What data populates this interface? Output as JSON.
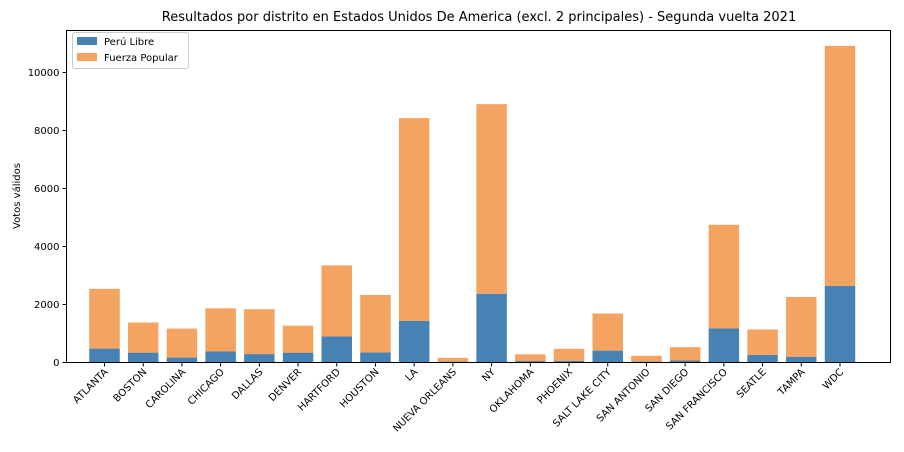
{
  "chart_data": {
    "type": "bar",
    "stacked": true,
    "title": "Resultados por distrito en Estados Unidos De America (excl. 2 principales) - Segunda vuelta 2021",
    "xlabel": "",
    "ylabel": "Votos válidos",
    "ylim": [
      0,
      11450
    ],
    "yticks": [
      0,
      2000,
      4000,
      6000,
      8000,
      10000
    ],
    "grid": false,
    "legend_position": "top-left",
    "categories": [
      "ATLANTA",
      "BOSTON",
      "CAROLINA",
      "CHICAGO",
      "DALLAS",
      "DENVER",
      "HARTFORD",
      "HOUSTON",
      "LA",
      "NUEVA ORLEANS",
      "NY",
      "OKLAHOMA",
      "PHOENIX",
      "SALT LAKE CITY",
      "SAN ANTONIO",
      "SAN DIEGO",
      "SAN FRANCISCO",
      "SEATLE",
      "TAMPA",
      "WDC"
    ],
    "series": [
      {
        "name": "Perú Libre",
        "color": "#4682b4",
        "values": [
          480,
          340,
          170,
          380,
          290,
          340,
          900,
          350,
          1440,
          30,
          2370,
          50,
          60,
          410,
          30,
          70,
          1180,
          260,
          200,
          2640
        ]
      },
      {
        "name": "Fuerza Popular",
        "color": "#f4a460",
        "values": [
          2060,
          1040,
          1000,
          1490,
          1550,
          930,
          2450,
          1980,
          6990,
          130,
          6540,
          230,
          410,
          1280,
          200,
          460,
          3570,
          880,
          2060,
          8280
        ]
      }
    ]
  }
}
